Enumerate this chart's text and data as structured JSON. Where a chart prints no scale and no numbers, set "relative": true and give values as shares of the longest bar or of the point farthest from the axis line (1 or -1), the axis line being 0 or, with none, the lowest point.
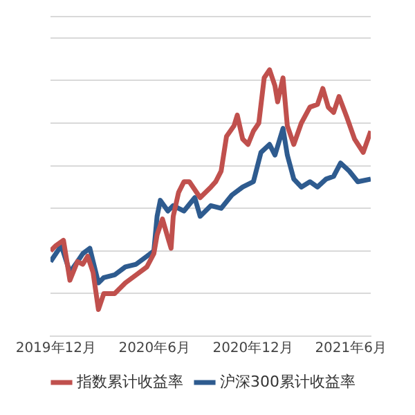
{
  "chart_data": {
    "type": "line",
    "relative": true,
    "grid": "y",
    "legend": "bottom",
    "marker": "none",
    "line_style": "solid",
    "xlim": [
      "2019-11-21",
      "2021-07-08"
    ],
    "xticks": [
      {
        "value": "2019-12",
        "label": "2019年12月"
      },
      {
        "value": "2020-06",
        "label": "2020年6月"
      },
      {
        "value": "2020-12",
        "label": "2020年12月"
      },
      {
        "value": "2021-06",
        "label": "2021年6月"
      }
    ],
    "series": [
      {
        "name": "指数累计收益率",
        "color": "#c0504d",
        "x": [
          "2019-11-21",
          "2019-12-01",
          "2019-12-15",
          "2019-12-27",
          "2020-01-10",
          "2020-01-20",
          "2020-01-29",
          "2020-02-08",
          "2020-02-18",
          "2020-02-28",
          "2020-03-19",
          "2020-04-08",
          "2020-04-28",
          "2020-05-18",
          "2020-05-31",
          "2020-06-06",
          "2020-06-16",
          "2020-06-26",
          "2020-07-02",
          "2020-07-06",
          "2020-07-16",
          "2020-07-26",
          "2020-08-05",
          "2020-08-25",
          "2020-09-14",
          "2020-09-23",
          "2020-10-03",
          "2020-10-13",
          "2020-10-27",
          "2020-11-02",
          "2020-11-12",
          "2020-11-22",
          "2020-12-02",
          "2020-12-12",
          "2020-12-22",
          "2021-01-01",
          "2021-01-11",
          "2021-01-16",
          "2021-01-26",
          "2021-02-03",
          "2021-02-15",
          "2021-03-01",
          "2021-03-17",
          "2021-03-31",
          "2021-04-10",
          "2021-04-20",
          "2021-04-30",
          "2021-05-10",
          "2021-05-25",
          "2021-06-08",
          "2021-06-24",
          "2021-07-08"
        ],
        "values": [
          0.32,
          0.34,
          0.36,
          0.21,
          0.28,
          0.27,
          0.3,
          0.24,
          0.1,
          0.16,
          0.16,
          0.2,
          0.23,
          0.26,
          0.31,
          0.38,
          0.44,
          0.37,
          0.33,
          0.45,
          0.54,
          0.58,
          0.58,
          0.52,
          0.56,
          0.58,
          0.62,
          0.75,
          0.79,
          0.83,
          0.74,
          0.72,
          0.77,
          0.8,
          0.97,
          1,
          0.94,
          0.88,
          0.97,
          0.79,
          0.72,
          0.8,
          0.86,
          0.87,
          0.93,
          0.86,
          0.84,
          0.9,
          0.82,
          0.74,
          0.69,
          0.77
        ]
      },
      {
        "name": "沪深300累计收益率",
        "color": "#2e5b8f",
        "x": [
          "2019-11-21",
          "2019-12-11",
          "2019-12-27",
          "2020-01-10",
          "2020-01-20",
          "2020-02-02",
          "2020-02-18",
          "2020-02-28",
          "2020-03-19",
          "2020-04-08",
          "2020-04-28",
          "2020-05-18",
          "2020-05-31",
          "2020-06-06",
          "2020-06-12",
          "2020-06-26",
          "2020-07-06",
          "2020-07-26",
          "2020-08-15",
          "2020-08-25",
          "2020-09-14",
          "2020-10-03",
          "2020-10-23",
          "2020-11-12",
          "2020-12-02",
          "2020-12-16",
          "2021-01-01",
          "2021-01-11",
          "2021-01-26",
          "2021-02-03",
          "2021-02-15",
          "2021-03-01",
          "2021-03-17",
          "2021-03-31",
          "2021-04-16",
          "2021-04-30",
          "2021-05-13",
          "2021-05-29",
          "2021-06-14",
          "2021-07-08"
        ],
        "values": [
          0.28,
          0.34,
          0.24,
          0.28,
          0.31,
          0.33,
          0.2,
          0.22,
          0.23,
          0.26,
          0.27,
          0.3,
          0.32,
          0.45,
          0.51,
          0.47,
          0.49,
          0.47,
          0.52,
          0.45,
          0.49,
          0.48,
          0.53,
          0.56,
          0.58,
          0.69,
          0.72,
          0.68,
          0.78,
          0.68,
          0.59,
          0.56,
          0.58,
          0.56,
          0.59,
          0.6,
          0.65,
          0.62,
          0.58,
          0.59
        ]
      }
    ]
  }
}
